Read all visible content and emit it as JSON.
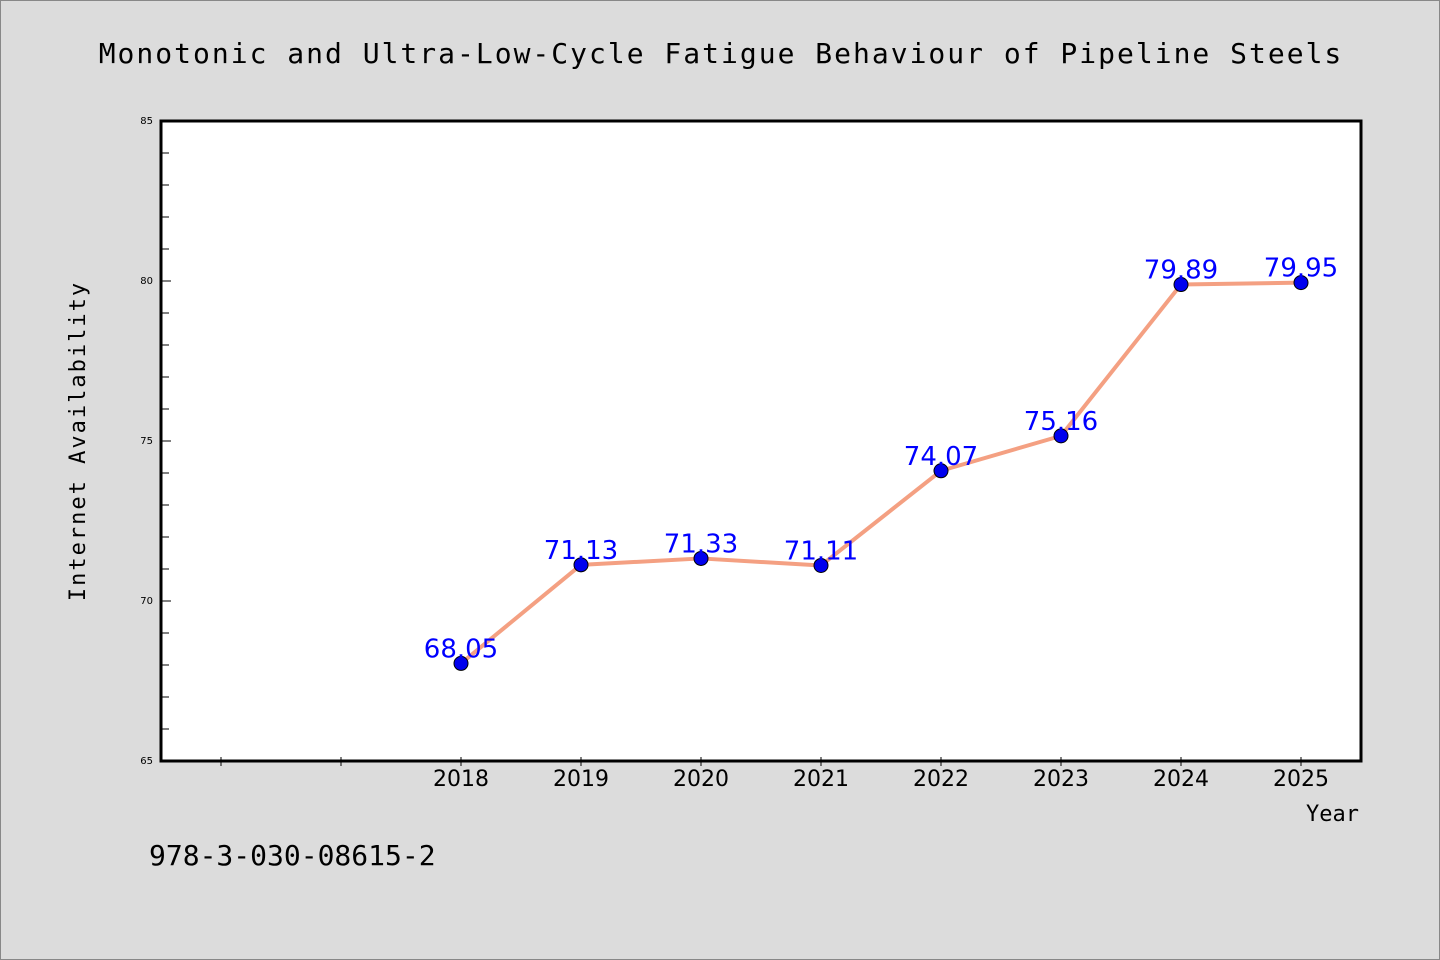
{
  "chart_data": {
    "type": "line",
    "title": "Monotonic and Ultra-Low-Cycle Fatigue Behaviour of Pipeline Steels",
    "xlabel": "Year",
    "ylabel": "Internet Availability",
    "footer_text": "978-3-030-08615-2",
    "x": [
      "2018",
      "2019",
      "2020",
      "2021",
      "2022",
      "2023",
      "2024",
      "2025"
    ],
    "y_ticks": [
      "65",
      "70",
      "75",
      "80",
      "85"
    ],
    "ylim": [
      65,
      85
    ],
    "x_domain": [
      2015.5,
      2025.5
    ],
    "series": [
      {
        "values": [
          68.05,
          71.13,
          71.33,
          71.11,
          74.07,
          75.16,
          79.89,
          79.95
        ],
        "labels": [
          "68.05",
          "71.13",
          "71.33",
          "71.11",
          "74.07",
          "75.16",
          "79.89",
          "79.95"
        ],
        "line_color": "#f4a082",
        "marker_color": "#0000ee",
        "label_color": "#0000ff"
      }
    ],
    "plot_background": "#ffffff",
    "page_background": "#dcdcdc",
    "grid": false,
    "legend": "none"
  }
}
